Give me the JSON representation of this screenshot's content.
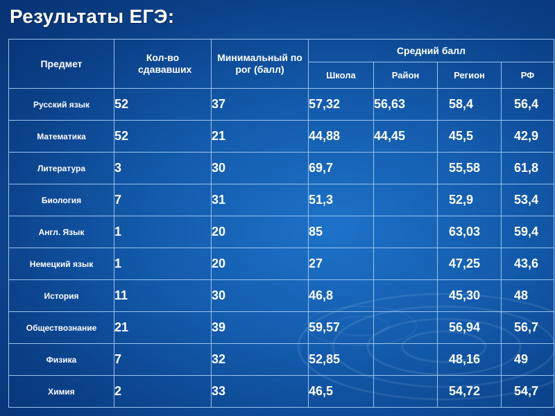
{
  "title": "Результаты ЕГЭ:",
  "header": {
    "subject": "Предмет",
    "count": "Кол-во сдававших",
    "min_threshold": "Минимальный порог (балл)",
    "avg_group": "Средний балл",
    "school": "Школа",
    "district": "Район",
    "region": "Регион",
    "rf": "РФ"
  },
  "rows": [
    {
      "subject": "Русский язык",
      "count": "52",
      "min": "37",
      "school": "57,32",
      "district": "56,63",
      "region": "58,4",
      "rf": "56,4"
    },
    {
      "subject": "Математика",
      "count": "52",
      "min": "21",
      "school": "44,88",
      "district": "44,45",
      "region": "45,5",
      "rf": "42,9"
    },
    {
      "subject": "Литература",
      "count": "3",
      "min": "30",
      "school": "69,7",
      "district": "",
      "region": "55,58",
      "rf": "61,8"
    },
    {
      "subject": "Биология",
      "count": "7",
      "min": "31",
      "school": "51,3",
      "district": "",
      "region": "52,9",
      "rf": "53,4"
    },
    {
      "subject": "Англ. Язык",
      "count": "1",
      "min": "20",
      "school": "85",
      "district": "",
      "region": "63,03",
      "rf": "59,4"
    },
    {
      "subject": "Немецкий язык",
      "count": "1",
      "min": "20",
      "school": "27",
      "district": "",
      "region": "47,25",
      "rf": "43,6"
    },
    {
      "subject": "История",
      "count": "11",
      "min": "30",
      "school": "46,8",
      "district": "",
      "region": "45,30",
      "rf": "48"
    },
    {
      "subject": "Обществознание",
      "count": "21",
      "min": "39",
      "school": "59,57",
      "district": "",
      "region": "56,94",
      "rf": "56,7"
    },
    {
      "subject": "Физика",
      "count": "7",
      "min": "32",
      "school": "52,85",
      "district": "",
      "region": "48,16",
      "rf": "49"
    },
    {
      "subject": "Химия",
      "count": "2",
      "min": "33",
      "school": "46,5",
      "district": "",
      "region": "54,72",
      "rf": "54,7"
    }
  ]
}
